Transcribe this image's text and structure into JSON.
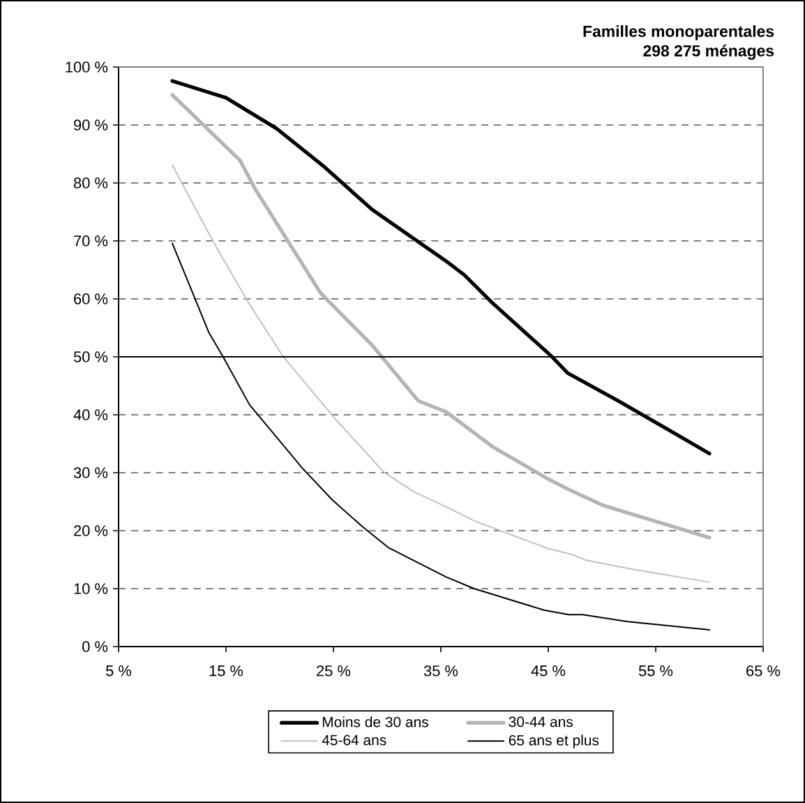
{
  "chart_data": {
    "type": "line",
    "title": "Familles monoparentales",
    "subtitle": "298 275 ménages",
    "xlim": [
      5,
      65
    ],
    "ylim": [
      0,
      100
    ],
    "xticks": [
      {
        "value": 5,
        "label": "5 %"
      },
      {
        "value": 15,
        "label": "15 %"
      },
      {
        "value": 25,
        "label": "25 %"
      },
      {
        "value": 35,
        "label": "35 %"
      },
      {
        "value": 45,
        "label": "45 %"
      },
      {
        "value": 55,
        "label": "55 %"
      },
      {
        "value": 65,
        "label": "65 %"
      }
    ],
    "yticks": [
      {
        "value": 0,
        "label": "0 %"
      },
      {
        "value": 10,
        "label": "10 %"
      },
      {
        "value": 20,
        "label": "20 %"
      },
      {
        "value": 30,
        "label": "30 %"
      },
      {
        "value": 40,
        "label": "40 %"
      },
      {
        "value": 50,
        "label": "50 %"
      },
      {
        "value": 60,
        "label": "60 %"
      },
      {
        "value": 70,
        "label": "70 %"
      },
      {
        "value": 80,
        "label": "80 %"
      },
      {
        "value": 90,
        "label": "90 %"
      },
      {
        "value": 100,
        "label": "100 %"
      }
    ],
    "grid": "y",
    "legend": "bottom",
    "marker": "none",
    "line_style": "solid",
    "ref_lines": [
      {
        "axis": "y",
        "value": 50,
        "color": "#000000"
      }
    ],
    "series": [
      {
        "name": "Moins de 30 ans",
        "color": "#000000",
        "x": [
          10,
          15,
          19.7,
          24.2,
          28.6,
          32,
          35.5,
          37.2,
          39.8,
          45.3,
          46.8,
          51.5,
          56.3,
          60
        ],
        "values": [
          97.6,
          94.7,
          89.4,
          82.7,
          75.4,
          71,
          66.5,
          64.1,
          59.3,
          50.1,
          47.2,
          42.4,
          37.3,
          33.3
        ]
      },
      {
        "name": "30-44 ans",
        "color": "#b4b4b4",
        "x": [
          10,
          16.3,
          17.7,
          23.8,
          28.6,
          32.9,
          35.5,
          39.8,
          45,
          46.8,
          50.2,
          60
        ],
        "values": [
          95.2,
          83.9,
          79,
          61,
          52,
          42.4,
          40.5,
          34.5,
          28.9,
          27.2,
          24.3,
          18.8
        ]
      },
      {
        "name": "45-64 ans",
        "color": "#c0c0c0",
        "x": [
          10,
          13.8,
          17.1,
          20.3,
          25.3,
          29.7,
          32.5,
          35.5,
          38.1,
          45,
          47.2,
          48.5,
          52.4,
          60
        ],
        "values": [
          83.1,
          69.9,
          59.3,
          50.1,
          39,
          30.1,
          26.7,
          24.1,
          21.7,
          16.9,
          15.9,
          14.9,
          13.5,
          11.1
        ]
      },
      {
        "name": "65 ans et plus",
        "color": "#000000",
        "x": [
          10,
          13.4,
          14.7,
          17.2,
          19.9,
          22.1,
          24.9,
          27.7,
          30.1,
          35.5,
          38.1,
          44.6,
          46.9,
          48.2,
          52.4,
          60
        ],
        "values": [
          69.6,
          54.2,
          50.1,
          41.7,
          35.7,
          30.8,
          25.3,
          20.7,
          17.1,
          12,
          10,
          6.3,
          5.5,
          5.5,
          4.3,
          2.9
        ]
      }
    ]
  }
}
